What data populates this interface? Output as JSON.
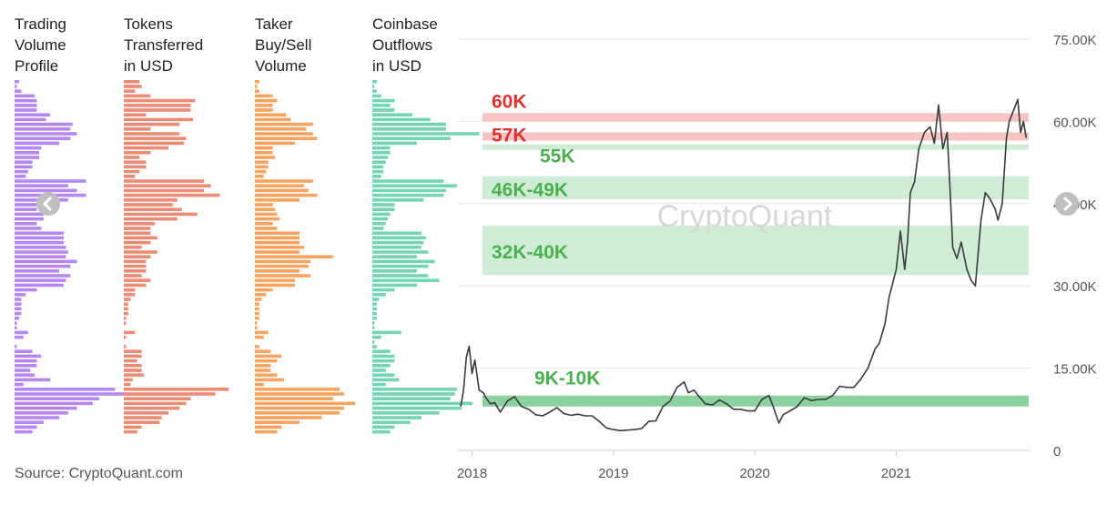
{
  "chart_data": {
    "type": "line",
    "source": "Source: CryptoQuant.com",
    "watermark": "CryptoQuant",
    "profiles": [
      {
        "name": "Trading Volume Profile",
        "lines": [
          "Trading",
          "Volume",
          "Profile"
        ],
        "color": "#b487f2",
        "values": [
          2,
          1,
          3,
          9,
          10,
          10,
          10,
          16,
          14,
          26,
          25,
          28,
          25,
          20,
          12,
          11,
          11,
          8,
          8,
          6,
          5,
          32,
          24,
          28,
          32,
          24,
          10,
          10,
          13,
          13,
          10,
          12,
          22,
          22,
          22,
          23,
          24,
          23,
          28,
          25,
          20,
          25,
          23,
          22,
          10,
          5,
          3,
          3,
          3,
          3,
          2,
          1,
          1,
          6,
          4,
          0,
          1,
          8,
          12,
          10,
          10,
          7,
          9,
          16,
          4,
          45,
          50,
          38,
          35,
          28,
          24,
          20,
          13,
          10,
          8
        ]
      },
      {
        "name": "Tokens Transferred in USD",
        "lines": [
          "Tokens",
          "Transferred",
          "in USD"
        ],
        "color": "#ec8c75",
        "values": [
          7,
          8,
          5,
          12,
          32,
          30,
          30,
          10,
          31,
          25,
          12,
          25,
          28,
          27,
          20,
          12,
          7,
          10,
          10,
          7,
          5,
          36,
          39,
          36,
          43,
          24,
          22,
          26,
          33,
          24,
          14,
          12,
          12,
          15,
          12,
          8,
          15,
          12,
          10,
          10,
          10,
          8,
          12,
          10,
          5,
          5,
          3,
          2,
          2,
          2,
          1,
          1,
          0,
          5,
          1,
          0,
          1,
          8,
          8,
          6,
          8,
          8,
          9,
          4,
          3,
          47,
          41,
          30,
          28,
          25,
          20,
          17,
          16,
          8,
          6
        ]
      },
      {
        "name": "Taker Buy/Sell Volume",
        "lines": [
          "Taker",
          "Buy/Sell",
          "Volume"
        ],
        "color": "#f6a45f",
        "values": [
          2,
          1,
          2,
          8,
          10,
          8,
          8,
          14,
          16,
          26,
          23,
          26,
          28,
          18,
          8,
          8,
          9,
          6,
          6,
          5,
          4,
          26,
          22,
          24,
          28,
          20,
          8,
          9,
          10,
          11,
          8,
          10,
          20,
          20,
          20,
          22,
          20,
          35,
          25,
          24,
          20,
          25,
          18,
          18,
          8,
          5,
          3,
          2,
          2,
          2,
          2,
          1,
          1,
          6,
          4,
          0,
          2,
          7,
          12,
          10,
          7,
          7,
          10,
          13,
          4,
          38,
          40,
          35,
          45,
          40,
          38,
          30,
          20,
          12,
          10
        ]
      },
      {
        "name": "Coinbase Outflows in USD",
        "lines": [
          "Coinbase",
          "Outflows",
          "in USD"
        ],
        "color": "#74d4b4",
        "values": [
          2,
          1,
          2,
          4,
          10,
          8,
          10,
          18,
          26,
          33,
          33,
          48,
          35,
          20,
          8,
          8,
          7,
          6,
          5,
          5,
          4,
          32,
          38,
          33,
          32,
          23,
          10,
          10,
          8,
          7,
          6,
          5,
          22,
          24,
          23,
          22,
          25,
          20,
          28,
          25,
          20,
          25,
          30,
          20,
          10,
          6,
          3,
          2,
          2,
          2,
          2,
          1,
          1,
          13,
          4,
          1,
          2,
          8,
          10,
          10,
          8,
          6,
          10,
          12,
          6,
          38,
          37,
          35,
          45,
          40,
          30,
          22,
          17,
          10,
          8
        ]
      }
    ],
    "y_axis": {
      "ylim": [
        0,
        75000
      ],
      "ticks": [
        0,
        15000,
        30000,
        45000,
        60000,
        75000
      ],
      "tick_labels": [
        "0",
        "15.00K",
        "30.00K",
        "45.00K",
        "60.00K",
        "75.00K"
      ]
    },
    "x_axis": {
      "xlim": [
        2017.9,
        2021.95
      ],
      "ticks": [
        2018,
        2019,
        2020,
        2021
      ],
      "tick_labels": [
        "2018",
        "2019",
        "2020",
        "2021"
      ]
    },
    "zones": [
      {
        "label": "60K",
        "from": 60000,
        "to": 61500,
        "color": "#f08a8a",
        "label_color": "#e03030"
      },
      {
        "label": "57K",
        "from": 56500,
        "to": 58000,
        "color": "#f08a8a",
        "label_color": "#e03030"
      },
      {
        "label": "55K",
        "from": 54800,
        "to": 55800,
        "color": "#9fdcab",
        "label_color": "#4caf50"
      },
      {
        "label": "46K-49K",
        "from": 45800,
        "to": 50000,
        "color": "#9fdcab",
        "label_color": "#4caf50"
      },
      {
        "label": "32K-40K",
        "from": 32000,
        "to": 41000,
        "color": "#9fdcab",
        "label_color": "#4caf50"
      },
      {
        "label": "9K-10K",
        "from": 8000,
        "to": 10000,
        "color": "#5bbf78",
        "label_color": "#4caf50"
      }
    ],
    "series": [
      {
        "color": "#3a3a3a",
        "x": [
          2017.92,
          2017.94,
          2017.96,
          2017.98,
          2018.0,
          2018.02,
          2018.05,
          2018.08,
          2018.1,
          2018.13,
          2018.16,
          2018.2,
          2018.25,
          2018.3,
          2018.35,
          2018.4,
          2018.45,
          2018.5,
          2018.55,
          2018.6,
          2018.65,
          2018.7,
          2018.75,
          2018.8,
          2018.85,
          2018.9,
          2018.95,
          2019.0,
          2019.05,
          2019.1,
          2019.15,
          2019.2,
          2019.25,
          2019.3,
          2019.35,
          2019.4,
          2019.45,
          2019.5,
          2019.53,
          2019.57,
          2019.6,
          2019.65,
          2019.7,
          2019.75,
          2019.8,
          2019.85,
          2019.9,
          2019.95,
          2020.0,
          2020.05,
          2020.1,
          2020.13,
          2020.17,
          2020.2,
          2020.25,
          2020.3,
          2020.35,
          2020.4,
          2020.45,
          2020.5,
          2020.55,
          2020.6,
          2020.65,
          2020.7,
          2020.75,
          2020.8,
          2020.85,
          2020.88,
          2020.92,
          2020.95,
          2021.0,
          2021.03,
          2021.06,
          2021.08,
          2021.1,
          2021.13,
          2021.16,
          2021.2,
          2021.24,
          2021.27,
          2021.3,
          2021.33,
          2021.36,
          2021.38,
          2021.4,
          2021.43,
          2021.46,
          2021.5,
          2021.53,
          2021.56,
          2021.58,
          2021.6,
          2021.63,
          2021.66,
          2021.7,
          2021.72,
          2021.75,
          2021.78,
          2021.8,
          2021.83,
          2021.86,
          2021.88,
          2021.9,
          2021.92
        ],
        "y": [
          8000,
          11000,
          17000,
          19000,
          14000,
          16500,
          11000,
          10500,
          9500,
          8500,
          8700,
          7000,
          9000,
          9800,
          8000,
          7500,
          6500,
          6300,
          7000,
          7800,
          6700,
          6400,
          6600,
          6300,
          6300,
          5300,
          4100,
          3800,
          3600,
          3700,
          3800,
          4000,
          5300,
          5400,
          8000,
          9000,
          11500,
          12500,
          10500,
          11000,
          10000,
          8500,
          8300,
          9200,
          8500,
          7500,
          7500,
          7200,
          7200,
          9300,
          10000,
          8000,
          5000,
          6500,
          7200,
          8000,
          9600,
          9100,
          9300,
          9300,
          10000,
          11700,
          11500,
          11500,
          13000,
          15000,
          18500,
          19500,
          23000,
          28000,
          33000,
          40000,
          33000,
          38000,
          47000,
          49000,
          55000,
          58000,
          59000,
          56000,
          63000,
          55000,
          58000,
          48000,
          37000,
          35000,
          38000,
          33000,
          31000,
          30000,
          36000,
          42000,
          47000,
          46000,
          44000,
          42000,
          45000,
          57000,
          60000,
          62000,
          64000,
          58000,
          60000,
          57000
        ]
      }
    ]
  }
}
